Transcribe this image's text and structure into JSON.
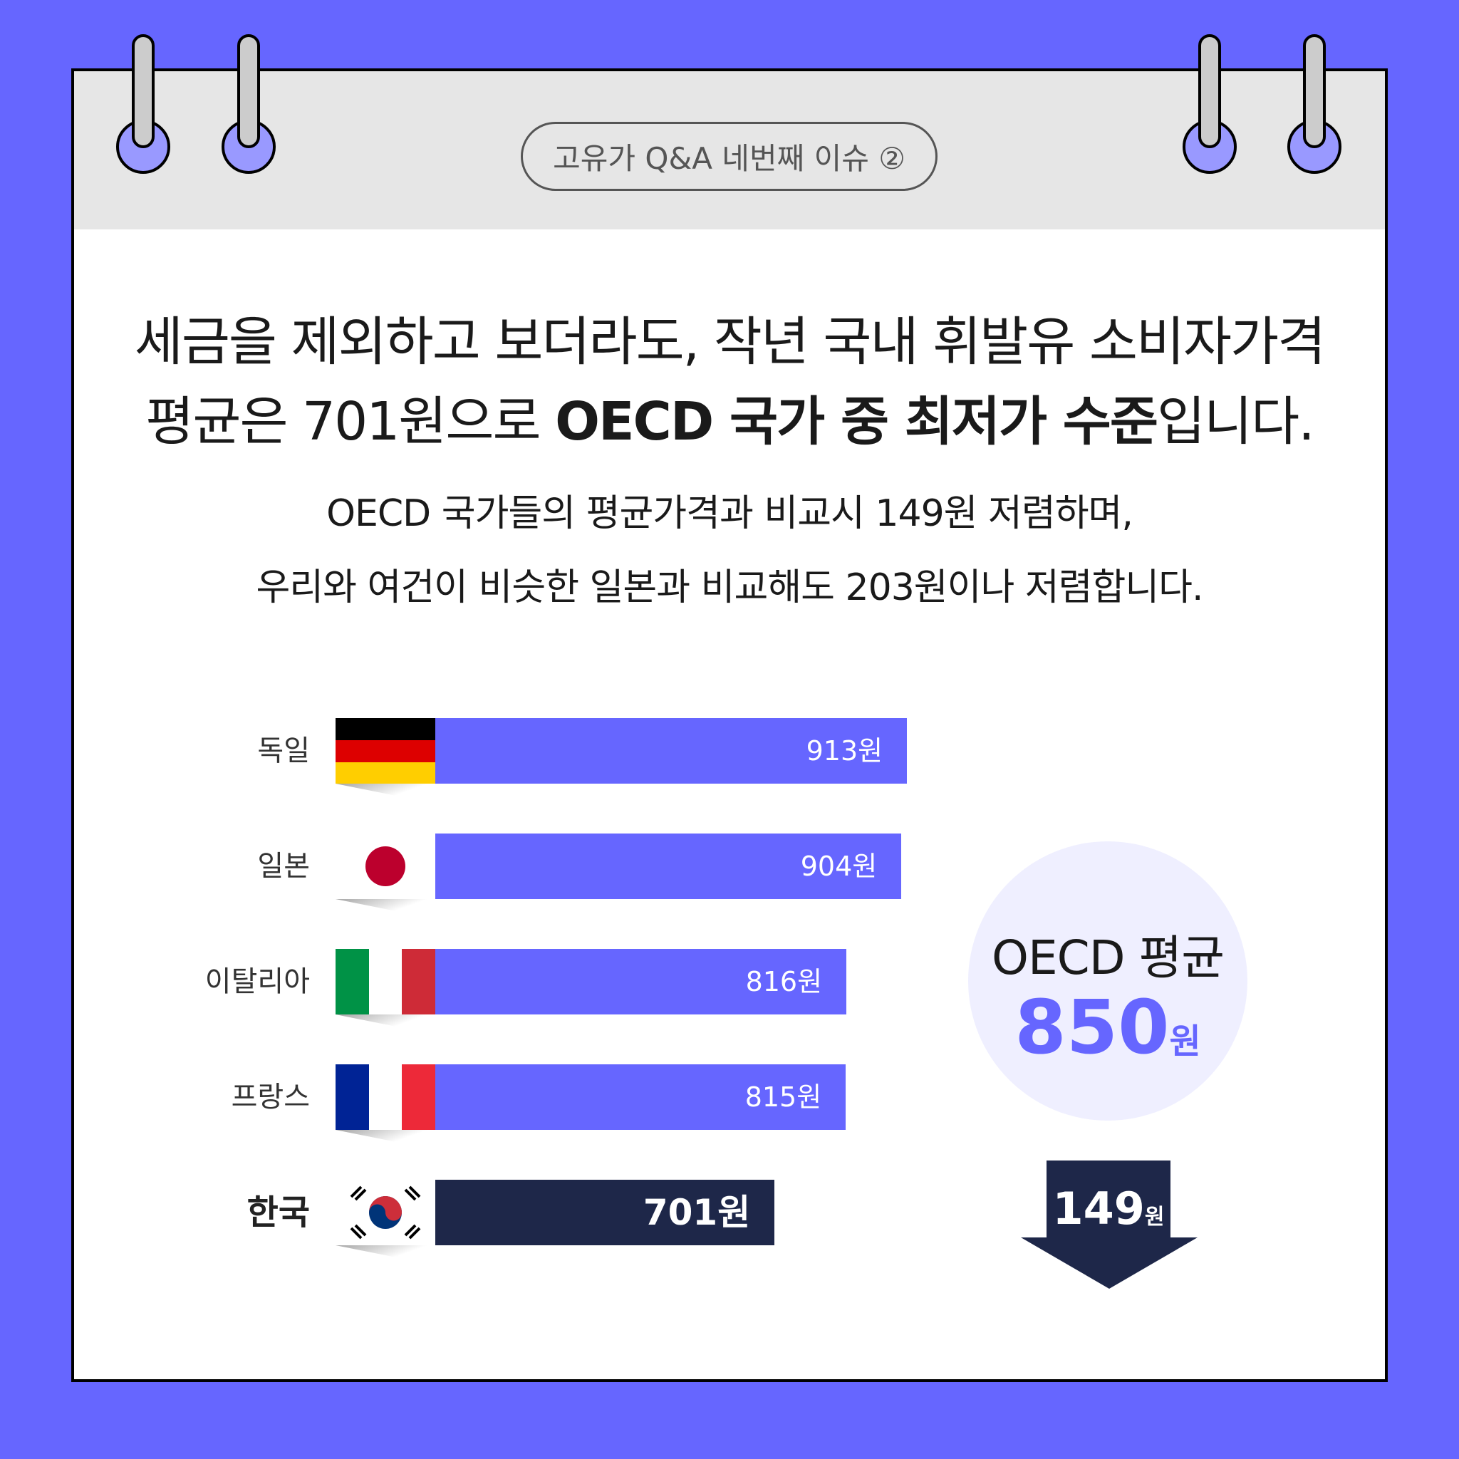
{
  "header": {
    "badge": "고유가 Q&A 네번째 이슈 ②"
  },
  "headline": {
    "line1": "세금을 제외하고 보더라도, 작년 국내 휘발유 소비자가격",
    "line2_pre": "평균은 701원으로 ",
    "line2_bold": "OECD 국가 중 최저가 수준",
    "line2_post": "입니다."
  },
  "subtext": {
    "line1": "OECD 국가들의 평균가격과 비교시 149원 저렴하며,",
    "line2": "우리와 여건이 비슷한 일본과 비교해도 203원이나 저렴합니다."
  },
  "colors": {
    "bar": "#6666ff",
    "korea_bar": "#1e2749",
    "background": "#6666ff",
    "avg_circle": "#efefff"
  },
  "chart_data": {
    "type": "bar",
    "orientation": "horizontal",
    "unit": "원",
    "categories": [
      "독일",
      "일본",
      "이탈리아",
      "프랑스",
      "한국"
    ],
    "values": [
      913,
      904,
      816,
      815,
      701
    ],
    "labels": [
      "913원",
      "904원",
      "816원",
      "815원",
      "701원"
    ],
    "flags": [
      "germany-flag",
      "japan-flag",
      "italy-flag",
      "france-flag",
      "korea-flag"
    ],
    "highlight": "한국"
  },
  "average": {
    "title": "OECD 평균",
    "value": "850",
    "unit": "원"
  },
  "difference": {
    "value": "149",
    "unit": "원"
  }
}
